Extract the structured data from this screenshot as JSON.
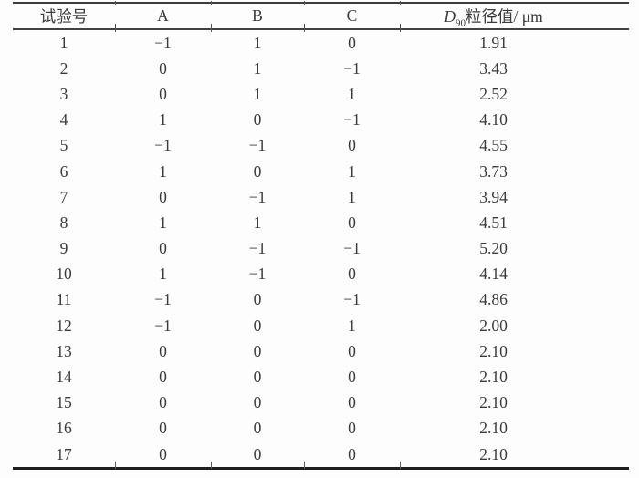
{
  "table": {
    "columns": [
      {
        "label": "试验号"
      },
      {
        "label": "A"
      },
      {
        "label": "B"
      },
      {
        "label": "C"
      },
      {
        "label_parts": {
          "symbol": "D",
          "subscript": "90",
          "suffix": "粒径值/ μm"
        }
      }
    ],
    "rows": [
      [
        "1",
        "−1",
        "1",
        "0",
        "1.91"
      ],
      [
        "2",
        "0",
        "1",
        "−1",
        "3.43"
      ],
      [
        "3",
        "0",
        "1",
        "1",
        "2.52"
      ],
      [
        "4",
        "1",
        "0",
        "−1",
        "4.10"
      ],
      [
        "5",
        "−1",
        "−1",
        "0",
        "4.55"
      ],
      [
        "6",
        "1",
        "0",
        "1",
        "3.73"
      ],
      [
        "7",
        "0",
        "−1",
        "1",
        "3.94"
      ],
      [
        "8",
        "1",
        "1",
        "0",
        "4.51"
      ],
      [
        "9",
        "0",
        "−1",
        "−1",
        "5.20"
      ],
      [
        "10",
        "1",
        "−1",
        "0",
        "4.14"
      ],
      [
        "11",
        "−1",
        "0",
        "−1",
        "4.86"
      ],
      [
        "12",
        "−1",
        "0",
        "1",
        "2.00"
      ],
      [
        "13",
        "0",
        "0",
        "0",
        "2.10"
      ],
      [
        "14",
        "0",
        "0",
        "0",
        "2.10"
      ],
      [
        "15",
        "0",
        "0",
        "0",
        "2.10"
      ],
      [
        "16",
        "0",
        "0",
        "0",
        "2.10"
      ],
      [
        "17",
        "0",
        "0",
        "0",
        "2.10"
      ]
    ],
    "text_color": "#3a3a3a",
    "rule_color": "#2f2f2f"
  }
}
